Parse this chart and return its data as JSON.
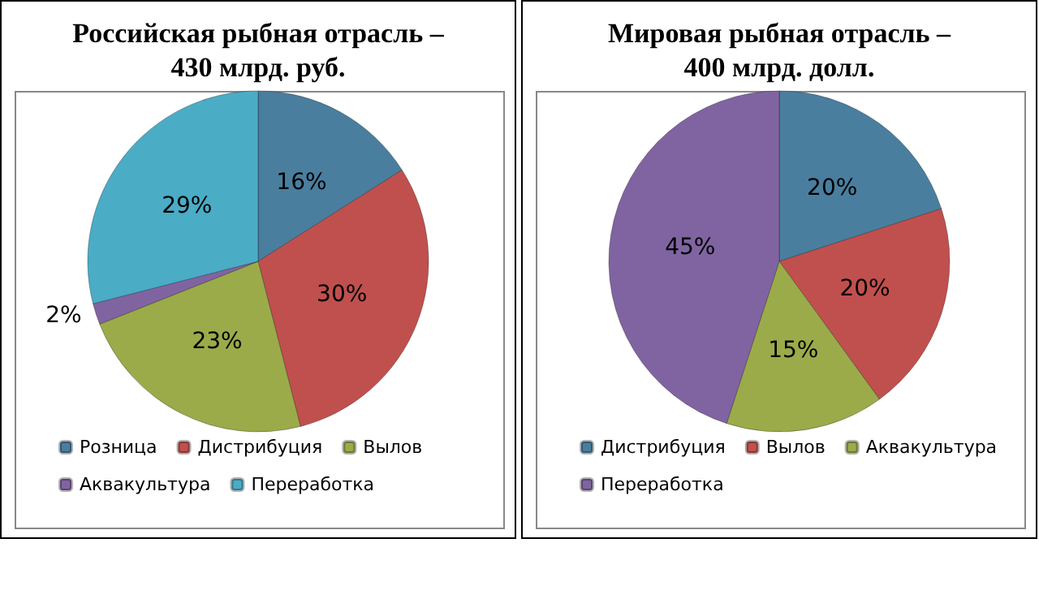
{
  "chart_data": [
    {
      "type": "pie",
      "title": "Российская рыбная отрасль –\n430 млрд. руб.",
      "categories": [
        "Розница",
        "Дистрибуция",
        "Вылов",
        "Аквакультура",
        "Переработка"
      ],
      "values": [
        16,
        30,
        23,
        2,
        29
      ],
      "value_labels": [
        "16%",
        "30%",
        "23%",
        "2%",
        "29%"
      ],
      "colors": [
        "#4a7e9e",
        "#c0504d",
        "#9bab4a",
        "#8064a2",
        "#4bacc6"
      ],
      "legend": "bottom"
    },
    {
      "type": "pie",
      "title": "Мировая рыбная отрасль –\n400 млрд. долл.",
      "categories": [
        "Дистрибуция",
        "Вылов",
        "Аквакультура",
        "Переработка"
      ],
      "values": [
        20,
        20,
        15,
        45
      ],
      "value_labels": [
        "20%",
        "20%",
        "15%",
        "45%"
      ],
      "colors": [
        "#4a7e9e",
        "#c0504d",
        "#9bab4a",
        "#8064a2"
      ],
      "legend": "bottom"
    }
  ]
}
